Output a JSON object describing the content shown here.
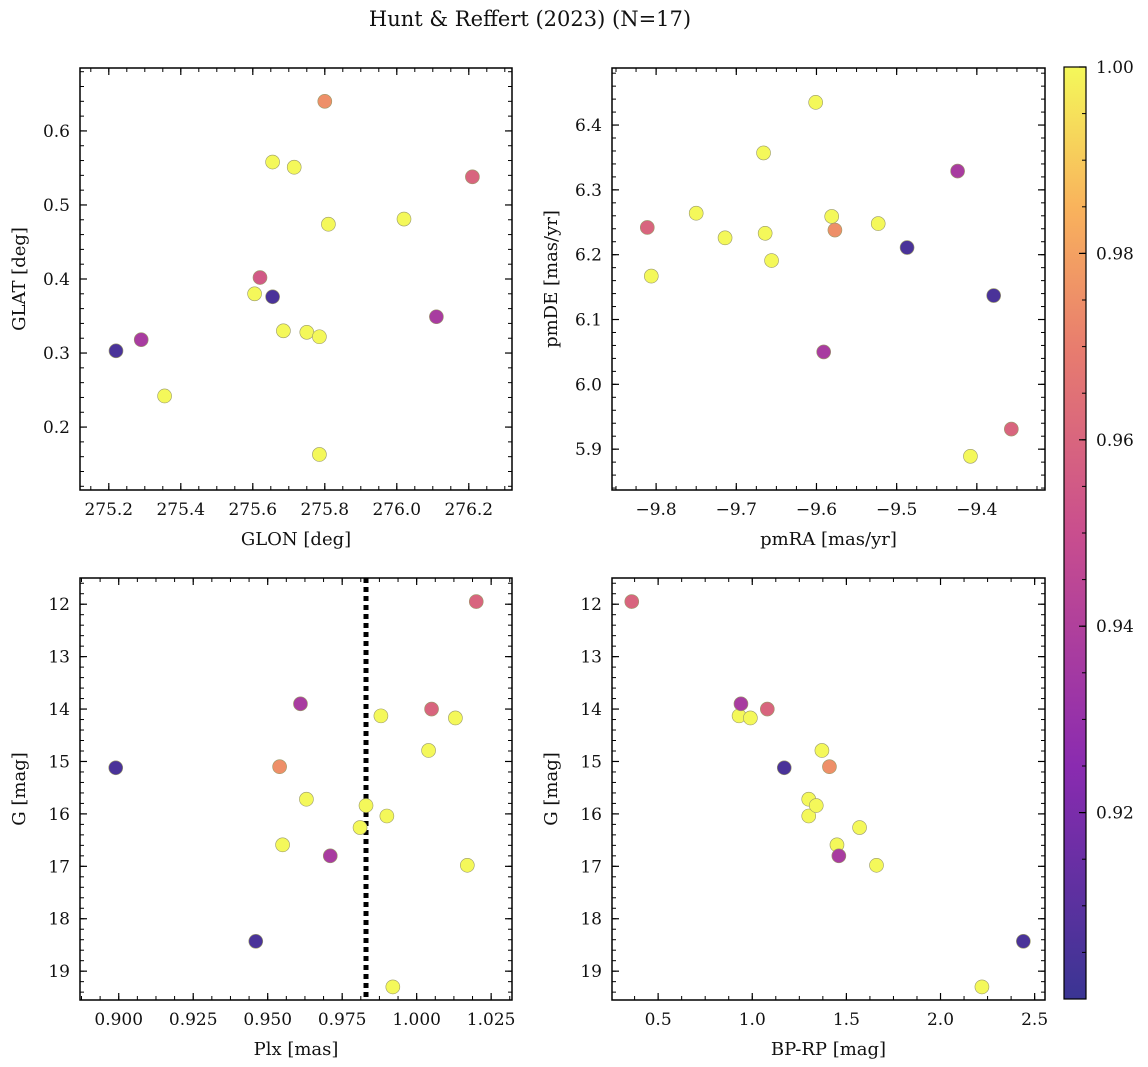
{
  "figure_title": "Hunt & Reffert (2023) (N=17)",
  "colorbar": {
    "min": 0.9,
    "max": 1.0,
    "ticks": [
      "0.92",
      "0.94",
      "0.96",
      "0.98",
      "1.00"
    ],
    "colormap": "plasma"
  },
  "chart_data": [
    {
      "type": "scatter",
      "name": "glon-glat",
      "xlabel": "GLON [deg]",
      "ylabel": "GLAT [deg]",
      "xlim": [
        275.12,
        276.32
      ],
      "ylim": [
        0.115,
        0.685
      ],
      "xticks": [
        "275.2",
        "275.4",
        "275.6",
        "275.8",
        "276.0",
        "276.2"
      ],
      "yticks": [
        "0.2",
        "0.3",
        "0.4",
        "0.5",
        "0.6"
      ],
      "invert_y": false,
      "points": [
        {
          "x": 275.22,
          "y": 0.303,
          "c": 0.905
        },
        {
          "x": 275.29,
          "y": 0.318,
          "c": 0.937
        },
        {
          "x": 275.355,
          "y": 0.242,
          "c": 1.0
        },
        {
          "x": 275.605,
          "y": 0.38,
          "c": 1.0
        },
        {
          "x": 275.62,
          "y": 0.402,
          "c": 0.955
        },
        {
          "x": 275.655,
          "y": 0.376,
          "c": 0.905
        },
        {
          "x": 275.655,
          "y": 0.558,
          "c": 1.0
        },
        {
          "x": 275.685,
          "y": 0.33,
          "c": 1.0
        },
        {
          "x": 275.715,
          "y": 0.551,
          "c": 1.0
        },
        {
          "x": 275.75,
          "y": 0.328,
          "c": 1.0
        },
        {
          "x": 275.785,
          "y": 0.322,
          "c": 1.0
        },
        {
          "x": 275.785,
          "y": 0.163,
          "c": 1.0
        },
        {
          "x": 275.8,
          "y": 0.64,
          "c": 0.975
        },
        {
          "x": 275.81,
          "y": 0.474,
          "c": 1.0
        },
        {
          "x": 276.02,
          "y": 0.481,
          "c": 1.0
        },
        {
          "x": 276.11,
          "y": 0.349,
          "c": 0.937
        },
        {
          "x": 276.21,
          "y": 0.538,
          "c": 0.96
        }
      ]
    },
    {
      "type": "scatter",
      "name": "pmra-pmde",
      "xlabel": "pmRA [mas/yr]",
      "ylabel": "pmDE [mas/yr]",
      "xlim": [
        -9.855,
        -9.315
      ],
      "ylim": [
        5.837,
        6.488
      ],
      "xticks": [
        "−9.8",
        "−9.7",
        "−9.6",
        "−9.5",
        "−9.4"
      ],
      "yticks": [
        "5.9",
        "6.0",
        "6.1",
        "6.2",
        "6.3",
        "6.4"
      ],
      "invert_y": false,
      "points": [
        {
          "x": -9.811,
          "y": 6.242,
          "c": 0.96
        },
        {
          "x": -9.806,
          "y": 6.167,
          "c": 1.0
        },
        {
          "x": -9.75,
          "y": 6.264,
          "c": 1.0
        },
        {
          "x": -9.714,
          "y": 6.226,
          "c": 1.0
        },
        {
          "x": -9.666,
          "y": 6.357,
          "c": 1.0
        },
        {
          "x": -9.664,
          "y": 6.233,
          "c": 1.0
        },
        {
          "x": -9.656,
          "y": 6.191,
          "c": 1.0
        },
        {
          "x": -9.601,
          "y": 6.435,
          "c": 1.0
        },
        {
          "x": -9.591,
          "y": 6.05,
          "c": 0.937
        },
        {
          "x": -9.581,
          "y": 6.259,
          "c": 1.0
        },
        {
          "x": -9.577,
          "y": 6.238,
          "c": 0.975
        },
        {
          "x": -9.523,
          "y": 6.248,
          "c": 1.0
        },
        {
          "x": -9.487,
          "y": 6.211,
          "c": 0.905
        },
        {
          "x": -9.424,
          "y": 6.329,
          "c": 0.937
        },
        {
          "x": -9.408,
          "y": 5.889,
          "c": 1.0
        },
        {
          "x": -9.379,
          "y": 6.137,
          "c": 0.905
        },
        {
          "x": -9.357,
          "y": 5.931,
          "c": 0.96
        }
      ]
    },
    {
      "type": "scatter",
      "name": "plx-g",
      "xlabel": "Plx [mas]",
      "ylabel": "G [mag]",
      "xlim": [
        0.887,
        1.032
      ],
      "ylim": [
        11.5,
        19.55
      ],
      "xticks": [
        "0.900",
        "0.925",
        "0.950",
        "0.975",
        "1.000",
        "1.025"
      ],
      "yticks": [
        "12",
        "13",
        "14",
        "15",
        "16",
        "17",
        "18",
        "19"
      ],
      "invert_y": true,
      "vline": 0.983,
      "points": [
        {
          "x": 0.899,
          "y": 15.12,
          "c": 0.905
        },
        {
          "x": 0.946,
          "y": 18.43,
          "c": 0.905
        },
        {
          "x": 0.954,
          "y": 15.1,
          "c": 0.975
        },
        {
          "x": 0.955,
          "y": 16.59,
          "c": 1.0
        },
        {
          "x": 0.961,
          "y": 13.9,
          "c": 0.937
        },
        {
          "x": 0.963,
          "y": 15.72,
          "c": 1.0
        },
        {
          "x": 0.971,
          "y": 16.8,
          "c": 0.937
        },
        {
          "x": 0.981,
          "y": 16.26,
          "c": 1.0
        },
        {
          "x": 0.983,
          "y": 15.84,
          "c": 1.0
        },
        {
          "x": 0.988,
          "y": 14.13,
          "c": 1.0
        },
        {
          "x": 0.99,
          "y": 16.04,
          "c": 1.0
        },
        {
          "x": 0.992,
          "y": 19.3,
          "c": 1.0
        },
        {
          "x": 1.004,
          "y": 14.79,
          "c": 1.0
        },
        {
          "x": 1.005,
          "y": 14.0,
          "c": 0.96
        },
        {
          "x": 1.013,
          "y": 14.17,
          "c": 1.0
        },
        {
          "x": 1.017,
          "y": 16.98,
          "c": 1.0
        },
        {
          "x": 1.02,
          "y": 11.95,
          "c": 0.96
        }
      ]
    },
    {
      "type": "scatter",
      "name": "bprp-g",
      "xlabel": "BP-RP [mag]",
      "ylabel": "G [mag]",
      "xlim": [
        0.255,
        2.555
      ],
      "ylim": [
        11.5,
        19.55
      ],
      "xticks": [
        "0.5",
        "1.0",
        "1.5",
        "2.0",
        "2.5"
      ],
      "yticks": [
        "12",
        "13",
        "14",
        "15",
        "16",
        "17",
        "18",
        "19"
      ],
      "invert_y": true,
      "points": [
        {
          "x": 0.36,
          "y": 11.95,
          "c": 0.96
        },
        {
          "x": 0.93,
          "y": 14.13,
          "c": 1.0
        },
        {
          "x": 0.94,
          "y": 13.9,
          "c": 0.937
        },
        {
          "x": 0.99,
          "y": 14.17,
          "c": 1.0
        },
        {
          "x": 1.08,
          "y": 14.0,
          "c": 0.96
        },
        {
          "x": 1.17,
          "y": 15.12,
          "c": 0.905
        },
        {
          "x": 1.3,
          "y": 15.72,
          "c": 1.0
        },
        {
          "x": 1.3,
          "y": 16.04,
          "c": 1.0
        },
        {
          "x": 1.34,
          "y": 15.84,
          "c": 1.0
        },
        {
          "x": 1.37,
          "y": 14.79,
          "c": 1.0
        },
        {
          "x": 1.41,
          "y": 15.1,
          "c": 0.975
        },
        {
          "x": 1.45,
          "y": 16.59,
          "c": 1.0
        },
        {
          "x": 1.46,
          "y": 16.8,
          "c": 0.937
        },
        {
          "x": 1.57,
          "y": 16.26,
          "c": 1.0
        },
        {
          "x": 1.66,
          "y": 16.98,
          "c": 1.0
        },
        {
          "x": 2.22,
          "y": 19.3,
          "c": 1.0
        },
        {
          "x": 2.44,
          "y": 18.43,
          "c": 0.905
        }
      ]
    }
  ]
}
